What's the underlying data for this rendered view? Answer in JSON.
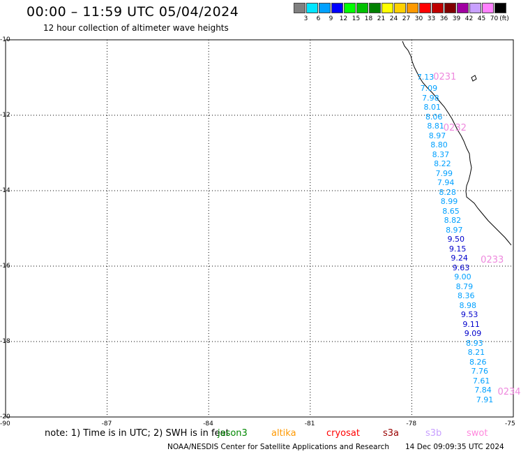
{
  "header": {
    "title": "00:00 – 11:59 UTC 05/04/2024",
    "subtitle": "12 hour collection of altimeter wave heights"
  },
  "colorbar": {
    "unit": "(ft)",
    "bins": [
      {
        "label": "3",
        "color": "#808080"
      },
      {
        "label": "6",
        "color": "#00e5ff"
      },
      {
        "label": "9",
        "color": "#00a0ff"
      },
      {
        "label": "12",
        "color": "#0000ff"
      },
      {
        "label": "15",
        "color": "#00ff00"
      },
      {
        "label": "18",
        "color": "#00c000"
      },
      {
        "label": "21",
        "color": "#008000"
      },
      {
        "label": "24",
        "color": "#ffff00"
      },
      {
        "label": "27",
        "color": "#ffd000"
      },
      {
        "label": "30",
        "color": "#ff9900"
      },
      {
        "label": "33",
        "color": "#ff0000"
      },
      {
        "label": "36",
        "color": "#c00000"
      },
      {
        "label": "39",
        "color": "#800000"
      },
      {
        "label": "42",
        "color": "#a000a0"
      },
      {
        "label": "45",
        "color": "#c8a0ff"
      },
      {
        "label": "70",
        "color": "#ff80ff"
      },
      {
        "label": "",
        "color": "#000000"
      }
    ]
  },
  "map": {
    "lon_ticks": [
      "-90",
      "-87",
      "-84",
      "-81",
      "-78",
      "-75"
    ],
    "lat_ticks": [
      "-10",
      "-12",
      "-14",
      "-16",
      "-18",
      "-20"
    ],
    "lon_range": [
      -90,
      -75
    ],
    "lat_range": [
      -20,
      -10
    ],
    "grid": "dotted"
  },
  "chart_data": {
    "type": "scatter",
    "title": "00:00 – 11:59 UTC 05/04/2024",
    "subtitle": "12 hour collection of altimeter wave heights",
    "xlim": [
      -90,
      -75
    ],
    "ylim": [
      -20,
      -10
    ],
    "points": [
      {
        "lon": -77.6,
        "lat": -11.0,
        "value": "7.13",
        "color": "#00a0ff"
      },
      {
        "lon": -77.5,
        "lat": -11.3,
        "value": "7.09",
        "color": "#00a0ff"
      },
      {
        "lon": -77.45,
        "lat": -11.55,
        "value": "7.98",
        "color": "#00a0ff"
      },
      {
        "lon": -77.4,
        "lat": -11.8,
        "value": "8.01",
        "color": "#00a0ff"
      },
      {
        "lon": -77.35,
        "lat": -12.05,
        "value": "8.06",
        "color": "#00a0ff"
      },
      {
        "lon": -77.3,
        "lat": -12.3,
        "value": "8.81",
        "color": "#00a0ff"
      },
      {
        "lon": -77.25,
        "lat": -12.55,
        "value": "8.97",
        "color": "#00a0ff"
      },
      {
        "lon": -77.2,
        "lat": -12.8,
        "value": "8.80",
        "color": "#00a0ff"
      },
      {
        "lon": -77.15,
        "lat": -13.05,
        "value": "8.37",
        "color": "#00a0ff"
      },
      {
        "lon": -77.1,
        "lat": -13.3,
        "value": "8.22",
        "color": "#00a0ff"
      },
      {
        "lon": -77.05,
        "lat": -13.55,
        "value": "7.99",
        "color": "#00a0ff"
      },
      {
        "lon": -77.0,
        "lat": -13.8,
        "value": "7.94",
        "color": "#00a0ff"
      },
      {
        "lon": -76.95,
        "lat": -14.05,
        "value": "8.28",
        "color": "#00a0ff"
      },
      {
        "lon": -76.9,
        "lat": -14.3,
        "value": "8.99",
        "color": "#00a0ff"
      },
      {
        "lon": -76.85,
        "lat": -14.55,
        "value": "8.65",
        "color": "#00a0ff"
      },
      {
        "lon": -76.8,
        "lat": -14.8,
        "value": "8.82",
        "color": "#00a0ff"
      },
      {
        "lon": -76.75,
        "lat": -15.05,
        "value": "8.97",
        "color": "#00a0ff"
      },
      {
        "lon": -76.7,
        "lat": -15.3,
        "value": "9.50",
        "color": "#0000cc"
      },
      {
        "lon": -76.65,
        "lat": -15.55,
        "value": "9.15",
        "color": "#0000cc"
      },
      {
        "lon": -76.6,
        "lat": -15.8,
        "value": "9.24",
        "color": "#0000cc"
      },
      {
        "lon": -76.55,
        "lat": -16.05,
        "value": "9.63",
        "color": "#0000cc"
      },
      {
        "lon": -76.5,
        "lat": -16.3,
        "value": "9.00",
        "color": "#00a0ff"
      },
      {
        "lon": -76.45,
        "lat": -16.55,
        "value": "8.79",
        "color": "#00a0ff"
      },
      {
        "lon": -76.4,
        "lat": -16.8,
        "value": "8.36",
        "color": "#00a0ff"
      },
      {
        "lon": -76.35,
        "lat": -17.05,
        "value": "8.98",
        "color": "#00a0ff"
      },
      {
        "lon": -76.3,
        "lat": -17.3,
        "value": "9.53",
        "color": "#0000cc"
      },
      {
        "lon": -76.25,
        "lat": -17.55,
        "value": "9.11",
        "color": "#0000cc"
      },
      {
        "lon": -76.2,
        "lat": -17.8,
        "value": "9.09",
        "color": "#0000cc"
      },
      {
        "lon": -76.15,
        "lat": -18.05,
        "value": "8.93",
        "color": "#00a0ff"
      },
      {
        "lon": -76.1,
        "lat": -18.3,
        "value": "8.21",
        "color": "#00a0ff"
      },
      {
        "lon": -76.05,
        "lat": -18.55,
        "value": "8.26",
        "color": "#00a0ff"
      },
      {
        "lon": -76.0,
        "lat": -18.8,
        "value": "7.76",
        "color": "#00a0ff"
      },
      {
        "lon": -75.95,
        "lat": -19.05,
        "value": "7.61",
        "color": "#00a0ff"
      },
      {
        "lon": -75.9,
        "lat": -19.3,
        "value": "7.84",
        "color": "#00a0ff"
      },
      {
        "lon": -75.85,
        "lat": -19.55,
        "value": "7.91",
        "color": "#00a0ff"
      }
    ],
    "pass_labels": [
      {
        "lon": -77.2,
        "lat": -11.0,
        "text": "0231"
      },
      {
        "lon": -76.9,
        "lat": -12.35,
        "text": "0232"
      },
      {
        "lon": -75.8,
        "lat": -15.85,
        "text": "0233"
      },
      {
        "lon": -75.3,
        "lat": -19.35,
        "text": "0234"
      }
    ]
  },
  "footer": {
    "note": "note: 1) Time is in UTC; 2) SWH is in feet",
    "satellites": [
      {
        "name": "jason3",
        "color": "#008800"
      },
      {
        "name": "altika",
        "color": "#ff9900"
      },
      {
        "name": "cryosat",
        "color": "#ff0000"
      },
      {
        "name": "s3a",
        "color": "#990000"
      },
      {
        "name": "s3b",
        "color": "#c8a0ff"
      },
      {
        "name": "swot",
        "color": "#ff88dd"
      }
    ],
    "org": "NOAA/NESDIS Center for Satellite Applications and Research",
    "timestamp": "14 Dec 09:09:35 UTC 2024"
  }
}
